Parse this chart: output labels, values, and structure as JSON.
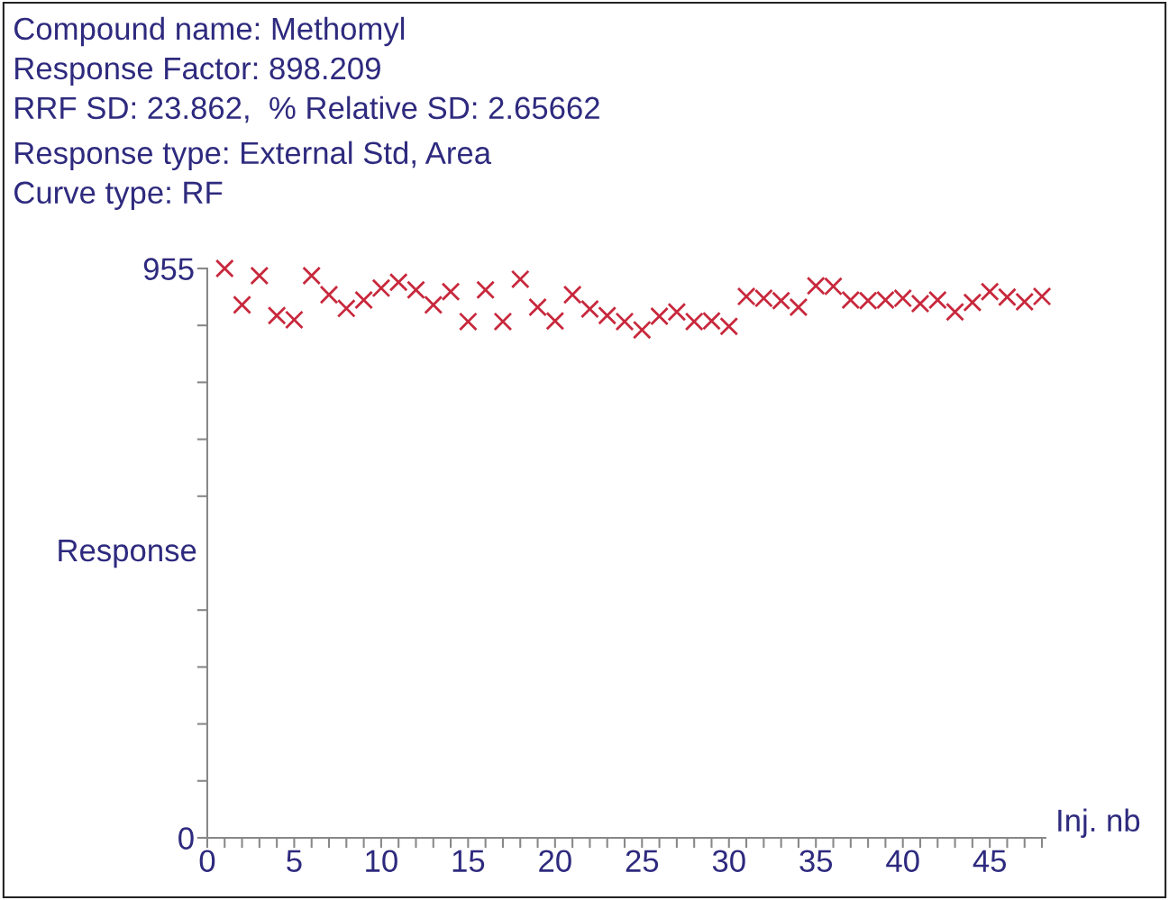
{
  "chart_data": {
    "type": "scatter",
    "annotations": [
      "Compound name: Methomyl",
      "Response Factor: 898.209",
      "RRF SD: 23.862,  % Relative SD: 2.65662",
      "Response type: External Std, Area",
      "Curve type: RF"
    ],
    "xlabel": "Inj. nb",
    "ylabel": "Response",
    "x": [
      1,
      2,
      3,
      4,
      5,
      6,
      7,
      8,
      9,
      10,
      11,
      12,
      13,
      14,
      15,
      16,
      17,
      18,
      19,
      20,
      21,
      22,
      23,
      24,
      25,
      26,
      27,
      28,
      29,
      30,
      31,
      32,
      33,
      34,
      35,
      36,
      37,
      38,
      39,
      40,
      41,
      42,
      43,
      44,
      45,
      46,
      47,
      48
    ],
    "series": [
      {
        "color": "#c8283c",
        "values": [
          955,
          894,
          943,
          876,
          869,
          943,
          911,
          888,
          902,
          922,
          932,
          919,
          894,
          916,
          866,
          919,
          866,
          937,
          890,
          867,
          911,
          887,
          876,
          866,
          852,
          875,
          882,
          866,
          867,
          858,
          908,
          905,
          901,
          890,
          926,
          925,
          902,
          901,
          902,
          905,
          896,
          902,
          882,
          898,
          916,
          907,
          899,
          908
        ]
      }
    ],
    "marker": "cross",
    "grid": false,
    "legend": false,
    "xlim": [
      0,
      48.2
    ],
    "xticks": [
      0,
      {
        "value": 1,
        "label": null
      },
      {
        "value": 2,
        "label": null
      },
      {
        "value": 3,
        "label": null
      },
      {
        "value": 4,
        "label": null
      },
      5,
      {
        "value": 6,
        "label": null
      },
      {
        "value": 7,
        "label": null
      },
      {
        "value": 8,
        "label": null
      },
      {
        "value": 9,
        "label": null
      },
      10,
      {
        "value": 11,
        "label": null
      },
      {
        "value": 12,
        "label": null
      },
      {
        "value": 13,
        "label": null
      },
      {
        "value": 14,
        "label": null
      },
      15,
      {
        "value": 16,
        "label": null
      },
      {
        "value": 17,
        "label": null
      },
      {
        "value": 18,
        "label": null
      },
      {
        "value": 19,
        "label": null
      },
      20,
      {
        "value": 21,
        "label": null
      },
      {
        "value": 22,
        "label": null
      },
      {
        "value": 23,
        "label": null
      },
      {
        "value": 24,
        "label": null
      },
      25,
      {
        "value": 26,
        "label": null
      },
      {
        "value": 27,
        "label": null
      },
      {
        "value": 28,
        "label": null
      },
      {
        "value": 29,
        "label": null
      },
      30,
      {
        "value": 31,
        "label": null
      },
      {
        "value": 32,
        "label": null
      },
      {
        "value": 33,
        "label": null
      },
      {
        "value": 34,
        "label": null
      },
      35,
      {
        "value": 36,
        "label": null
      },
      {
        "value": 37,
        "label": null
      },
      {
        "value": 38,
        "label": null
      },
      {
        "value": 39,
        "label": null
      },
      40,
      {
        "value": 41,
        "label": null
      },
      {
        "value": 42,
        "label": null
      },
      {
        "value": 43,
        "label": null
      },
      {
        "value": 44,
        "label": null
      },
      45,
      {
        "value": 46,
        "label": null
      },
      {
        "value": 47,
        "label": null
      },
      {
        "value": 48,
        "label": null
      }
    ],
    "ylim": [
      0,
      955
    ],
    "yticks": [
      0,
      {
        "value": 95.5,
        "label": null
      },
      {
        "value": 191,
        "label": null
      },
      {
        "value": 286.5,
        "label": null
      },
      {
        "value": 382,
        "label": null
      },
      {
        "value": 573,
        "label": null
      },
      {
        "value": 668.5,
        "label": null
      },
      {
        "value": 764,
        "label": null
      },
      {
        "value": 859.5,
        "label": null
      },
      955
    ]
  }
}
